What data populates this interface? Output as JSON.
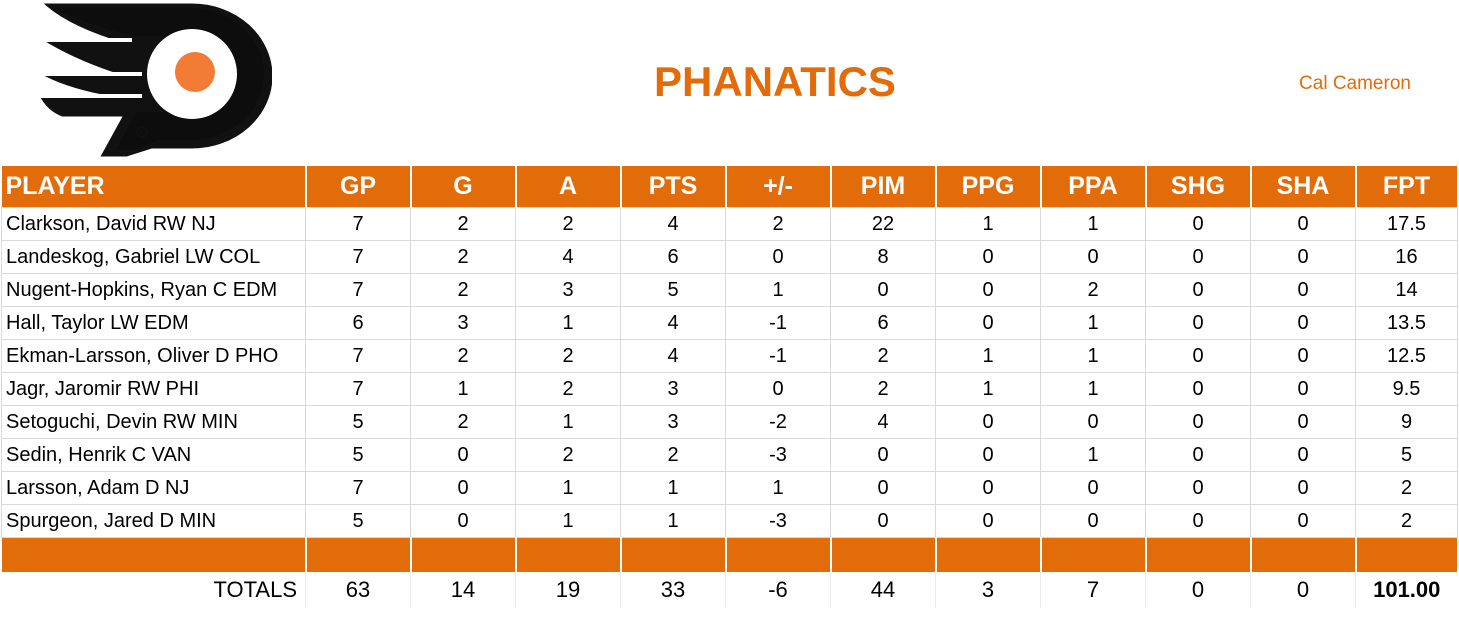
{
  "header": {
    "team_name": "PHANATICS",
    "owner": "Cal Cameron",
    "logo_icon": "flyers-logo-icon",
    "accent_color": "#E36C0A"
  },
  "table": {
    "columns": [
      "PLAYER",
      "GP",
      "G",
      "A",
      "PTS",
      "+/-",
      "PIM",
      "PPG",
      "PPA",
      "SHG",
      "SHA",
      "FPT"
    ],
    "rows": [
      [
        "Clarkson, David RW NJ",
        "7",
        "2",
        "2",
        "4",
        "2",
        "22",
        "1",
        "1",
        "0",
        "0",
        "17.5"
      ],
      [
        "Landeskog, Gabriel LW COL",
        "7",
        "2",
        "4",
        "6",
        "0",
        "8",
        "0",
        "0",
        "0",
        "0",
        "16"
      ],
      [
        "Nugent-Hopkins, Ryan C EDM",
        "7",
        "2",
        "3",
        "5",
        "1",
        "0",
        "0",
        "2",
        "0",
        "0",
        "14"
      ],
      [
        "Hall, Taylor LW EDM",
        "6",
        "3",
        "1",
        "4",
        "-1",
        "6",
        "0",
        "1",
        "0",
        "0",
        "13.5"
      ],
      [
        "Ekman-Larsson, Oliver D PHO",
        "7",
        "2",
        "2",
        "4",
        "-1",
        "2",
        "1",
        "1",
        "0",
        "0",
        "12.5"
      ],
      [
        "Jagr, Jaromir RW PHI",
        "7",
        "1",
        "2",
        "3",
        "0",
        "2",
        "1",
        "1",
        "0",
        "0",
        "9.5"
      ],
      [
        "Setoguchi, Devin RW MIN",
        "5",
        "2",
        "1",
        "3",
        "-2",
        "4",
        "0",
        "0",
        "0",
        "0",
        "9"
      ],
      [
        "Sedin, Henrik C VAN",
        "5",
        "0",
        "2",
        "2",
        "-3",
        "0",
        "0",
        "1",
        "0",
        "0",
        "5"
      ],
      [
        "Larsson, Adam D NJ",
        "7",
        "0",
        "1",
        "1",
        "1",
        "0",
        "0",
        "0",
        "0",
        "0",
        "2"
      ],
      [
        "Spurgeon, Jared D MIN",
        "5",
        "0",
        "1",
        "1",
        "-3",
        "0",
        "0",
        "0",
        "0",
        "0",
        "2"
      ]
    ],
    "totals": {
      "label": "TOTALS",
      "values": [
        "63",
        "14",
        "19",
        "33",
        "-6",
        "44",
        "3",
        "7",
        "0",
        "0",
        "101.00"
      ]
    }
  }
}
